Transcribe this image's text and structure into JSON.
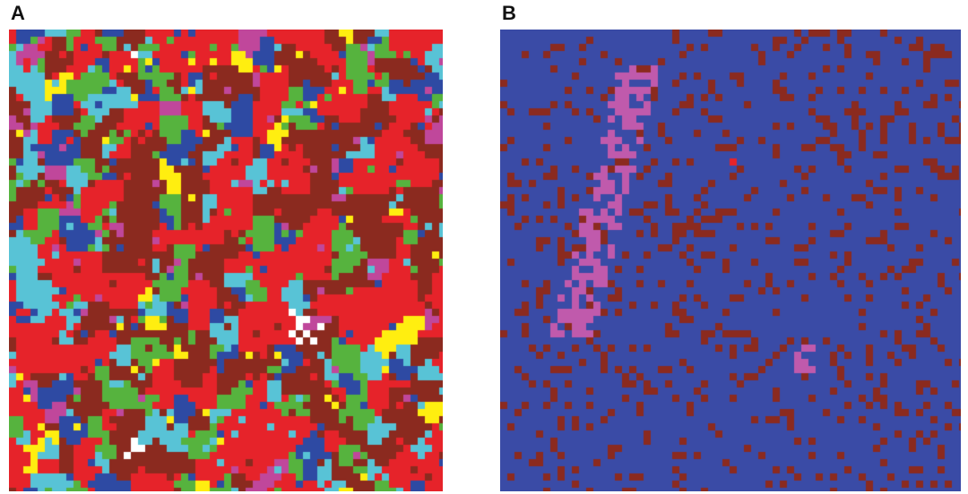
{
  "panels": [
    {
      "label": "A",
      "palette": [
        "#e6232a",
        "#8b2a1f",
        "#2e4aa3",
        "#58c3d6",
        "#56b33e",
        "#ffee10",
        "#c0479b"
      ],
      "weights": [
        0.22,
        0.2,
        0.14,
        0.14,
        0.14,
        0.08,
        0.08
      ],
      "white_patch_color": "#ffffff"
    },
    {
      "label": "B",
      "background": "#3a4ba6",
      "palette": [
        "#3a4ba6",
        "#8b2a1f",
        "#c05aac"
      ],
      "weights": [
        0.78,
        0.17,
        0.05
      ],
      "accent_color": "#e6232a"
    }
  ]
}
